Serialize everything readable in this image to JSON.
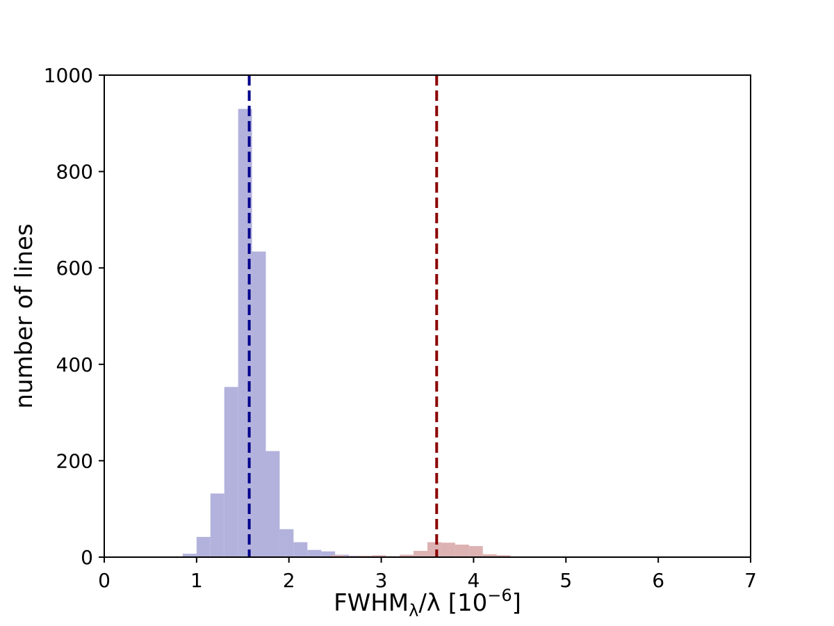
{
  "chart_data": {
    "type": "bar",
    "title": "",
    "xlabel": {
      "base": "FWHM",
      "sub": "λ",
      "rest": "/λ [10",
      "sup": "−6",
      "end": "]"
    },
    "ylabel": "number of lines",
    "xlim": [
      0,
      7
    ],
    "ylim": [
      0,
      1000
    ],
    "xticks": [
      "0",
      "1",
      "2",
      "3",
      "4",
      "5",
      "6",
      "7"
    ],
    "yticks": [
      "0",
      "200",
      "400",
      "600",
      "800",
      "1000"
    ],
    "grid": false,
    "series": [
      {
        "color": "#b2b2dc",
        "bins": [
          {
            "x0": 0.85,
            "x1": 1.0,
            "y": 7
          },
          {
            "x0": 1.0,
            "x1": 1.15,
            "y": 42
          },
          {
            "x0": 1.15,
            "x1": 1.3,
            "y": 132
          },
          {
            "x0": 1.3,
            "x1": 1.45,
            "y": 353
          },
          {
            "x0": 1.45,
            "x1": 1.6,
            "y": 930
          },
          {
            "x0": 1.6,
            "x1": 1.75,
            "y": 634
          },
          {
            "x0": 1.75,
            "x1": 1.9,
            "y": 220
          },
          {
            "x0": 1.9,
            "x1": 2.05,
            "y": 58
          },
          {
            "x0": 2.05,
            "x1": 2.2,
            "y": 31
          },
          {
            "x0": 2.2,
            "x1": 2.35,
            "y": 15
          },
          {
            "x0": 2.35,
            "x1": 2.5,
            "y": 12
          },
          {
            "x0": 2.5,
            "x1": 2.65,
            "y": 5
          },
          {
            "x0": 2.65,
            "x1": 2.8,
            "y": 3
          },
          {
            "x0": 2.8,
            "x1": 2.95,
            "y": 2
          },
          {
            "x0": 2.95,
            "x1": 3.1,
            "y": 1
          }
        ]
      },
      {
        "color": "#dcb2b2",
        "bins": [
          {
            "x0": 2.45,
            "x1": 2.6,
            "y": 4
          },
          {
            "x0": 2.6,
            "x1": 2.75,
            "y": 2
          },
          {
            "x0": 2.75,
            "x1": 2.9,
            "y": 3
          },
          {
            "x0": 2.9,
            "x1": 3.05,
            "y": 4
          },
          {
            "x0": 3.05,
            "x1": 3.2,
            "y": 2
          },
          {
            "x0": 3.2,
            "x1": 3.35,
            "y": 5
          },
          {
            "x0": 3.35,
            "x1": 3.5,
            "y": 13
          },
          {
            "x0": 3.5,
            "x1": 3.65,
            "y": 31
          },
          {
            "x0": 3.65,
            "x1": 3.8,
            "y": 30
          },
          {
            "x0": 3.8,
            "x1": 3.95,
            "y": 26
          },
          {
            "x0": 3.95,
            "x1": 4.1,
            "y": 23
          },
          {
            "x0": 4.1,
            "x1": 4.25,
            "y": 6
          },
          {
            "x0": 4.25,
            "x1": 4.4,
            "y": 4
          }
        ]
      }
    ],
    "reference_lines": [
      {
        "x": 1.57,
        "color": "#00008b",
        "style": "dashed"
      },
      {
        "x": 3.6,
        "color": "#8b0000",
        "style": "dashed"
      }
    ]
  }
}
